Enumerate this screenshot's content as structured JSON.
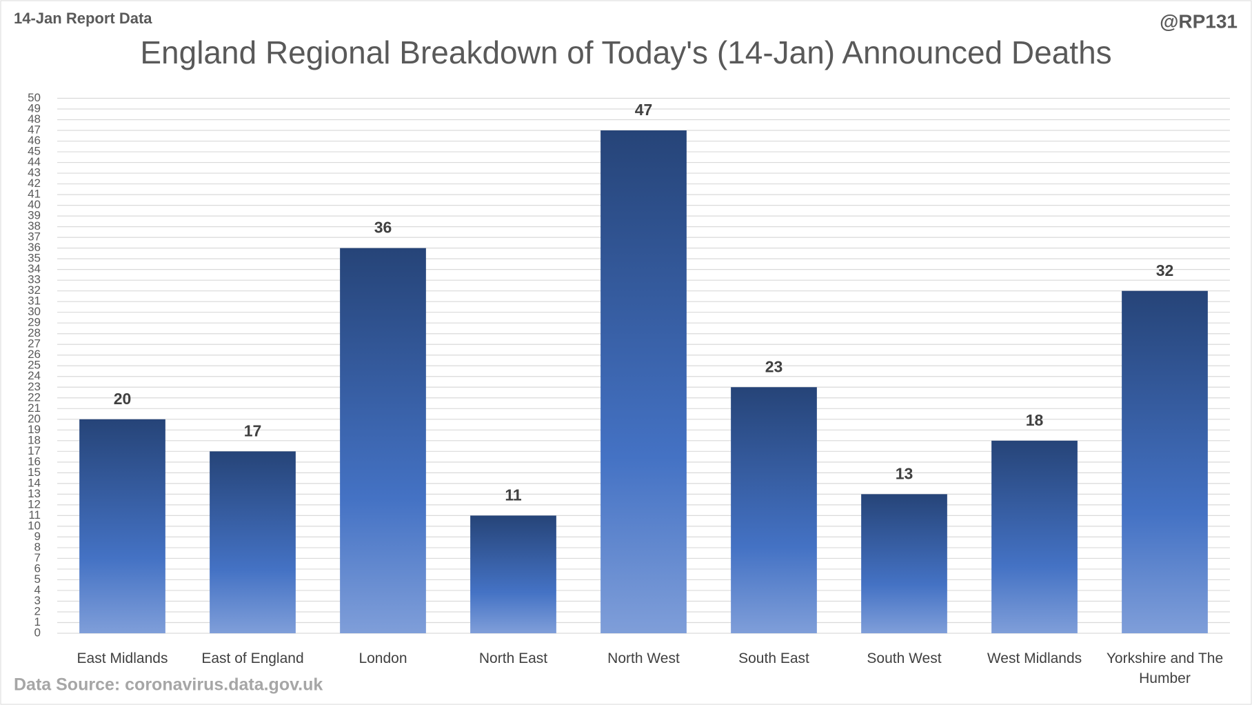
{
  "chart_data": {
    "type": "bar",
    "title": "England Regional Breakdown of Today's (14-Jan) Announced Deaths",
    "subtitle": "14-Jan Report Data",
    "credit": "@RP131",
    "source": "Data Source: coronavirus.data.gov.uk",
    "categories": [
      "East Midlands",
      "East of England",
      "London",
      "North East",
      "North West",
      "South East",
      "South West",
      "West Midlands",
      "Yorkshire and The Humber"
    ],
    "values": [
      20,
      17,
      36,
      11,
      47,
      23,
      13,
      18,
      32
    ],
    "color": "#4472c4",
    "ylim": [
      0,
      50
    ],
    "yticks": [
      0,
      1,
      2,
      3,
      4,
      5,
      6,
      7,
      8,
      9,
      10,
      11,
      12,
      13,
      14,
      15,
      16,
      17,
      18,
      19,
      20,
      21,
      22,
      23,
      24,
      25,
      26,
      27,
      28,
      29,
      30,
      31,
      32,
      33,
      34,
      35,
      36,
      37,
      38,
      39,
      40,
      41,
      42,
      43,
      44,
      45,
      46,
      47,
      48,
      49,
      50
    ],
    "grid": true
  }
}
